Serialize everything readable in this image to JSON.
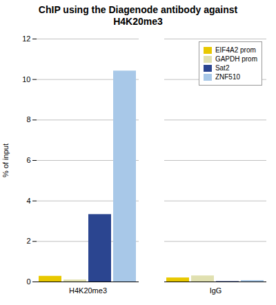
{
  "chart_data": {
    "type": "bar",
    "title": "ChIP using the Diagenode antibody against\nH4K20me3",
    "ylabel": "% of input",
    "categories": [
      "H4K20me3",
      "IgG"
    ],
    "series": [
      {
        "name": "EIF4A2 prom",
        "color": "#E8C800",
        "values": [
          0.28,
          0.2
        ]
      },
      {
        "name": "GAPDH prom",
        "color": "#E0E0B0",
        "values": [
          0.1,
          0.3
        ]
      },
      {
        "name": "Sat2",
        "color": "#2B4590",
        "values": [
          3.33,
          0.02
        ]
      },
      {
        "name": "ZNF510",
        "color": "#A8C8E8",
        "values": [
          10.42,
          0.07
        ]
      }
    ],
    "ylim": [
      0,
      12
    ],
    "yticks": [
      0,
      2,
      4,
      6,
      8,
      10,
      12
    ],
    "grid": true,
    "legend": "upper right"
  }
}
